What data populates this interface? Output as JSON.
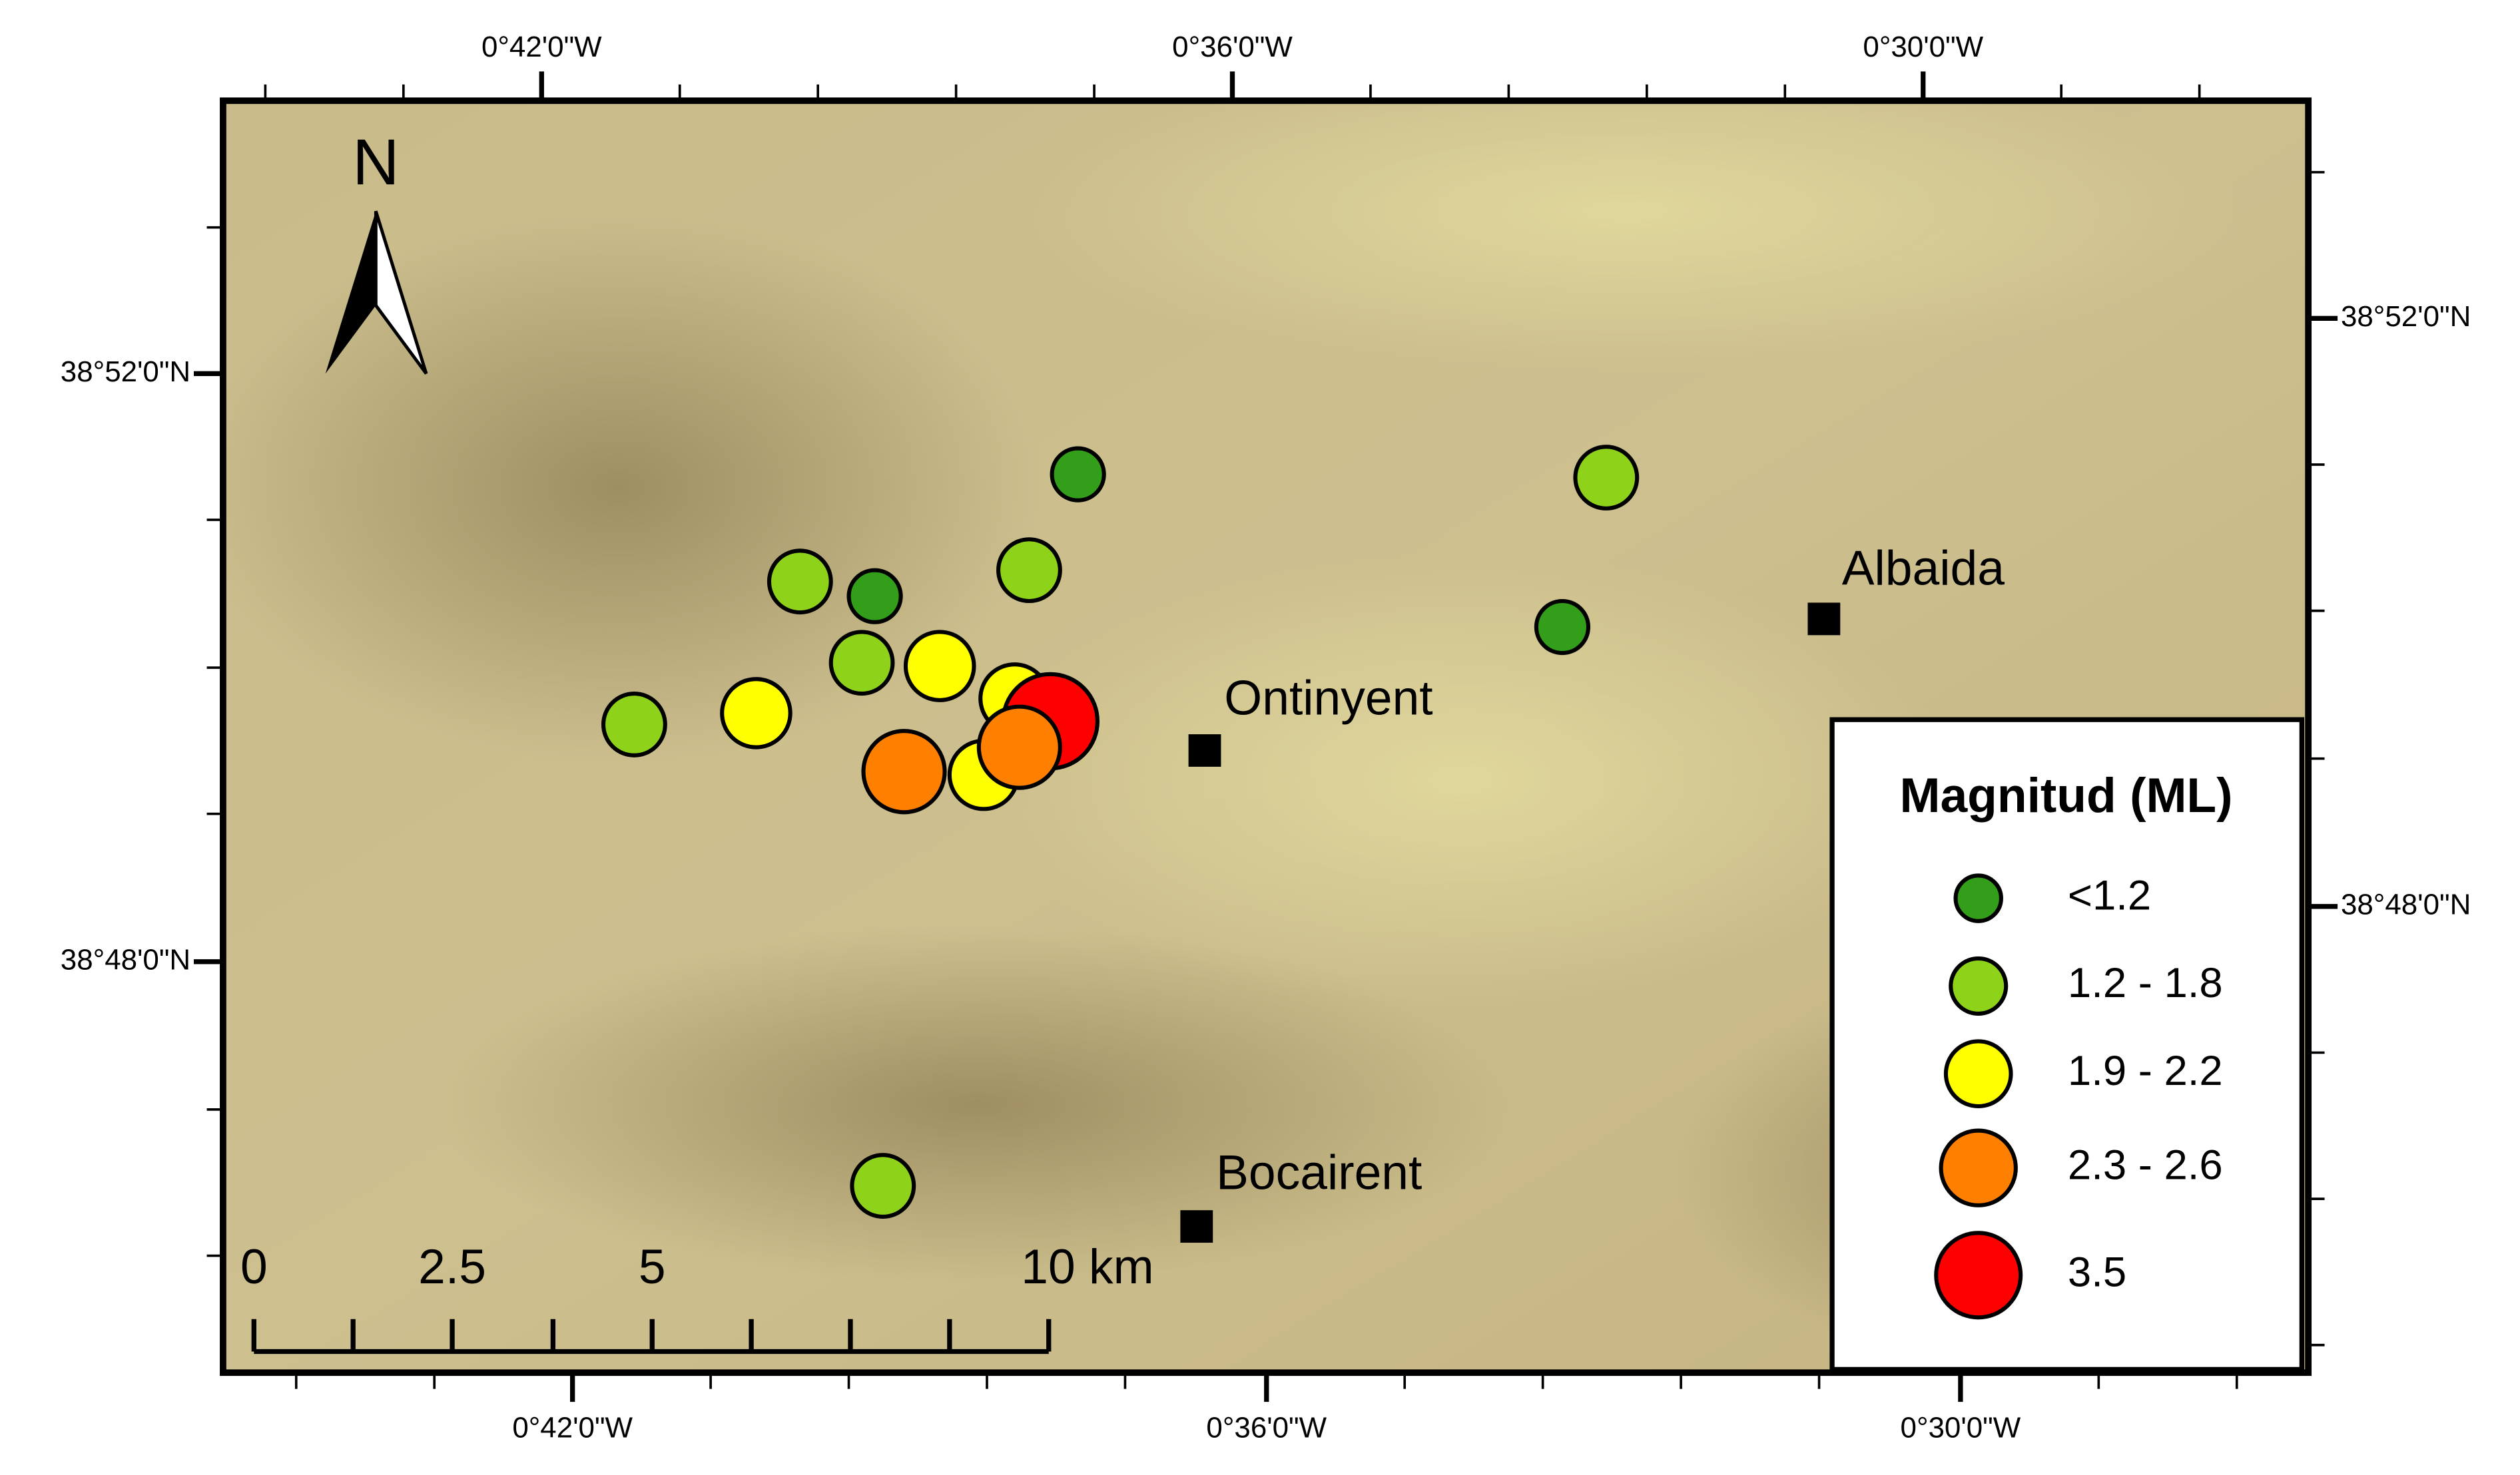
{
  "map": {
    "north_label": "N",
    "top_axis_labels": [
      "0°42'0\"W",
      "0°36'0\"W",
      "0°30'0\"W"
    ],
    "bottom_axis_labels": [
      "0°42'0\"W",
      "0°36'0\"W",
      "0°30'0\"W"
    ],
    "left_axis_labels": [
      "38°52'0\"N",
      "38°48'0\"N"
    ],
    "right_axis_labels": [
      "38°52'0\"N",
      "38°48'0\"N"
    ],
    "towns": [
      "Albaida",
      "Ontinyent",
      "Bocairent"
    ],
    "scale_bar": {
      "labels": [
        "0",
        "2.5",
        "5",
        "10 km"
      ]
    },
    "legend": {
      "title": "Magnitud (ML)",
      "items": [
        {
          "label": "<1.2",
          "color": "#339e1a"
        },
        {
          "label": "1.2 - 1.8",
          "color": "#8fd21a"
        },
        {
          "label": "1.9 - 2.2",
          "color": "#ffff00"
        },
        {
          "label": "2.3 - 2.6",
          "color": "#ff8000"
        },
        {
          "label": "3.5",
          "color": "#ff0000"
        }
      ]
    }
  }
}
